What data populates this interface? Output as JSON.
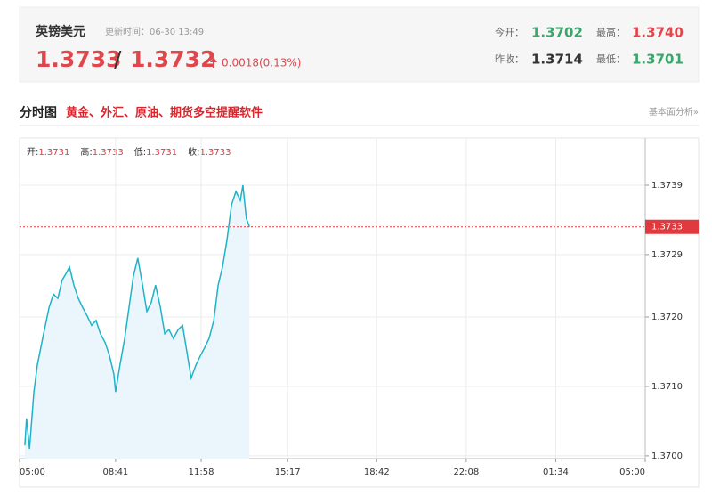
{
  "header": {
    "name": "英镑美元",
    "update": "更新时间：06-30 13:49",
    "bid": "1.3733",
    "separator": "/",
    "ask": "1.3732",
    "change": "0.0018(0.13%)",
    "stats": [
      {
        "label": "今开：",
        "value": "1.3702"
      },
      {
        "label": "最高：",
        "value": "1.3740"
      },
      {
        "label": "昨收：",
        "value": "1.3714"
      },
      {
        "label": "最低：",
        "value": "1.3701"
      }
    ]
  },
  "section": {
    "title": "分时图",
    "promo": "黄金、外汇、原油、期货多空提醒软件",
    "link": "基本面分析»"
  },
  "chart_data": {
    "type": "line",
    "ohlc": [
      {
        "label": "开:",
        "value": "1.3731"
      },
      {
        "label": "高:",
        "value": "1.3733"
      },
      {
        "label": "低:",
        "value": "1.3731"
      },
      {
        "label": "收:",
        "value": "1.3733"
      }
    ],
    "x": [
      "05:12",
      "05:16",
      "05:23",
      "05:33",
      "05:41",
      "05:53",
      "06:08",
      "06:18",
      "06:28",
      "06:38",
      "06:49",
      "06:55",
      "07:05",
      "07:15",
      "07:25",
      "07:36",
      "07:46",
      "07:56",
      "08:06",
      "08:17",
      "08:27",
      "08:37",
      "08:41",
      "08:51",
      "09:02",
      "09:12",
      "09:22",
      "09:32",
      "09:43",
      "09:53",
      "10:03",
      "10:13",
      "10:24",
      "10:34",
      "10:44",
      "10:54",
      "11:05",
      "11:15",
      "11:25",
      "11:35",
      "11:46",
      "11:56",
      "12:06",
      "12:16",
      "12:27",
      "12:37",
      "12:47",
      "12:57",
      "13:08",
      "13:18",
      "13:28",
      "13:34",
      "13:42",
      "13:49"
    ],
    "values": [
      1.37015,
      1.37054,
      1.3701,
      1.37092,
      1.37131,
      1.37169,
      1.37214,
      1.37233,
      1.37227,
      1.37253,
      1.37265,
      1.37272,
      1.37246,
      1.37227,
      1.37214,
      1.37201,
      1.37188,
      1.37195,
      1.37176,
      1.37163,
      1.37144,
      1.37118,
      1.37092,
      1.37131,
      1.37169,
      1.37214,
      1.37259,
      1.37285,
      1.37246,
      1.37208,
      1.37221,
      1.37246,
      1.37214,
      1.37176,
      1.37182,
      1.37169,
      1.37182,
      1.37188,
      1.3715,
      1.37112,
      1.37131,
      1.37144,
      1.37156,
      1.37169,
      1.37195,
      1.37246,
      1.37272,
      1.3731,
      1.37362,
      1.37381,
      1.37368,
      1.3739,
      1.37342,
      1.3733
    ],
    "color": "#1fb3c8",
    "fill": "#eaf6fb",
    "xticks": [
      "05:00",
      "08:41",
      "11:58",
      "15:17",
      "18:42",
      "22:08",
      "01:34",
      "05:00"
    ],
    "ylim": [
      1.36996,
      1.37458
    ],
    "yticks": [
      {
        "value": 1.3739,
        "label": "1.3739"
      },
      {
        "value": 1.3729,
        "label": "1.3729"
      },
      {
        "value": 1.372,
        "label": "1.3720"
      },
      {
        "value": 1.371,
        "label": "1.3710"
      },
      {
        "value": 1.37,
        "label": "1.3700"
      }
    ],
    "price_line": {
      "value": 1.3733,
      "label": "1.3733",
      "color": "#e0393e"
    },
    "grid": true
  }
}
